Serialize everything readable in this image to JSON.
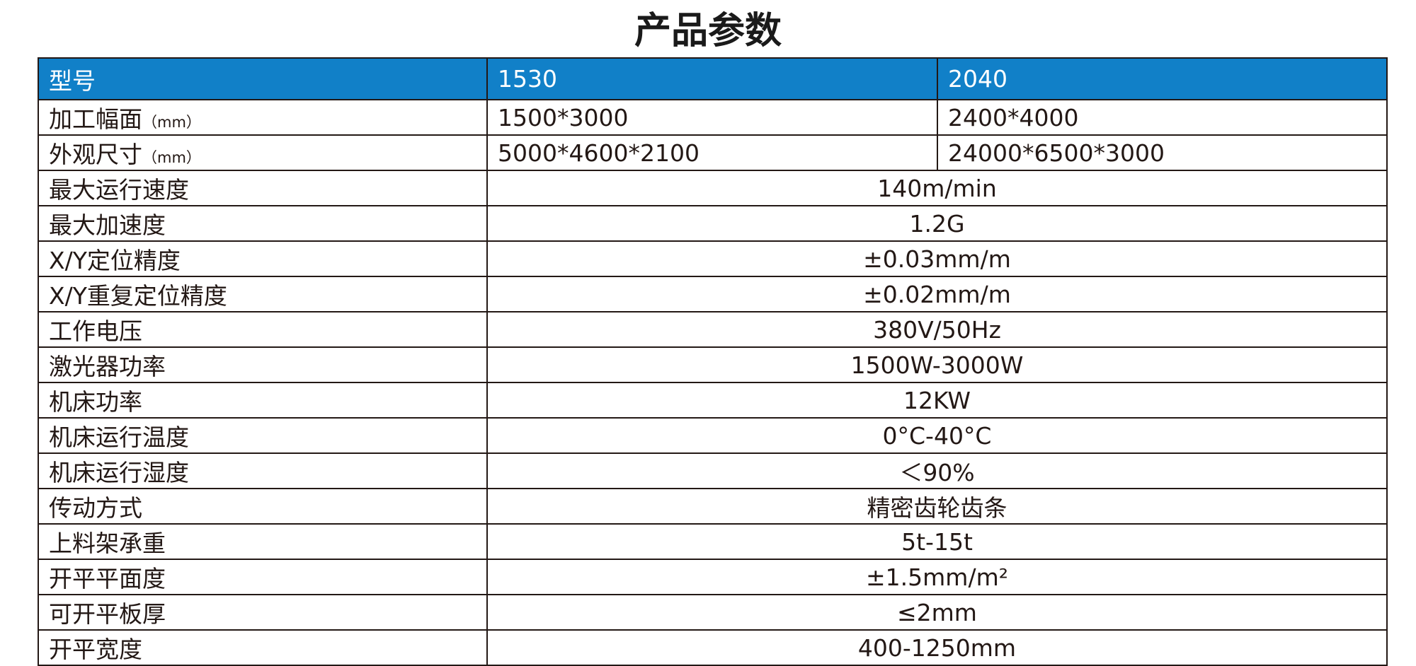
{
  "title": "产品参数",
  "table": {
    "header": [
      "型号",
      "1530",
      "2040"
    ],
    "rows": [
      {
        "label": "加工幅面",
        "unit": "（mm）",
        "values": [
          "1500*3000",
          "2400*4000"
        ]
      },
      {
        "label": "外观尺寸",
        "unit": "（mm）",
        "values": [
          "5000*4600*2100",
          "24000*6500*3000"
        ]
      },
      {
        "label": "最大运行速度",
        "values": [
          "140m/min"
        ]
      },
      {
        "label": "最大加速度",
        "values": [
          "1.2G"
        ]
      },
      {
        "label": "X/Y定位精度",
        "values": [
          "±0.03mm/m"
        ]
      },
      {
        "label": "X/Y重复定位精度",
        "values": [
          "±0.02mm/m"
        ]
      },
      {
        "label": "工作电压",
        "values": [
          "380V/50Hz"
        ]
      },
      {
        "label": "激光器功率",
        "values": [
          "1500W-3000W"
        ]
      },
      {
        "label": "机床功率",
        "values": [
          "12KW"
        ]
      },
      {
        "label": "机床运行温度",
        "values": [
          "0°C-40°C"
        ]
      },
      {
        "label": "机床运行湿度",
        "values": [
          "＜90%"
        ]
      },
      {
        "label": "传动方式",
        "values": [
          "精密齿轮齿条"
        ]
      },
      {
        "label": "上料架承重",
        "values": [
          "5t-15t"
        ]
      },
      {
        "label": "开平平面度",
        "values": [
          "±1.5mm/m²"
        ]
      },
      {
        "label": "可开平板厚",
        "values": [
          "≤2mm"
        ]
      },
      {
        "label": "开平宽度",
        "values": [
          "400-1250mm"
        ]
      }
    ]
  }
}
